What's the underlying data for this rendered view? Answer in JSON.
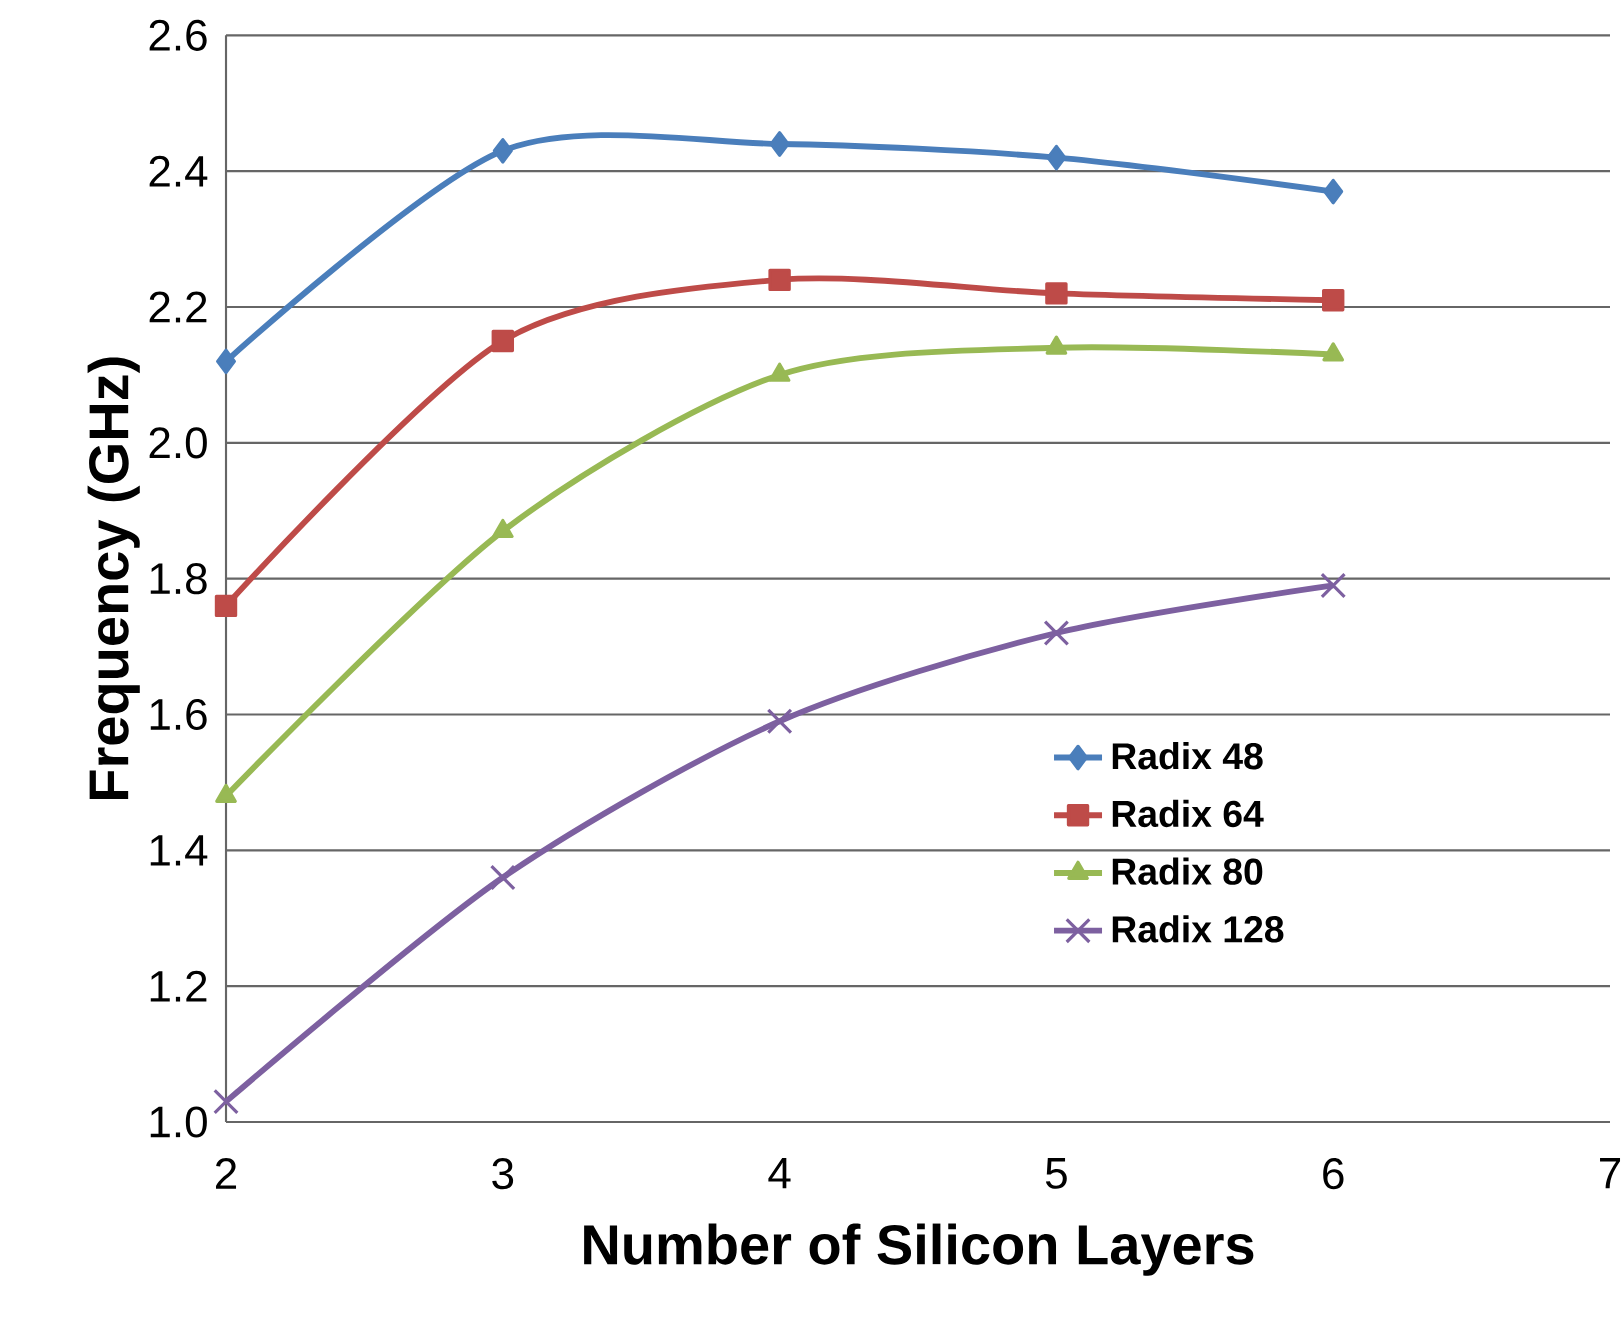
{
  "chart_data": {
    "type": "line",
    "xlabel": "Number of Silicon Layers",
    "ylabel": "Frequency (GHz)",
    "x": [
      2,
      3,
      4,
      5,
      6
    ],
    "series": [
      {
        "name": "Radix 48",
        "color": "#4a7ebb",
        "marker": "diamond",
        "values": [
          2.12,
          2.43,
          2.44,
          2.42,
          2.37
        ]
      },
      {
        "name": "Radix 64",
        "color": "#be4b48",
        "marker": "square",
        "values": [
          1.76,
          2.15,
          2.24,
          2.22,
          2.21
        ]
      },
      {
        "name": "Radix 80",
        "color": "#98b954",
        "marker": "triangle",
        "values": [
          1.48,
          1.87,
          2.1,
          2.14,
          2.13
        ]
      },
      {
        "name": "Radix 128",
        "color": "#7d60a0",
        "marker": "cross",
        "values": [
          1.03,
          1.36,
          1.59,
          1.72,
          1.79
        ]
      }
    ],
    "xlim": [
      2,
      7
    ],
    "xticks": [
      2,
      3,
      4,
      5,
      6,
      7
    ],
    "ylim": [
      1.0,
      2.6
    ],
    "yticks": [
      {
        "value": 1.0,
        "label": "1.0"
      },
      {
        "value": 1.2,
        "label": "1.2"
      },
      {
        "value": 1.4,
        "label": "1.4"
      },
      {
        "value": 1.6,
        "label": "1.6"
      },
      {
        "value": 1.8,
        "label": "1.8"
      },
      {
        "value": 2.0,
        "label": "2.0"
      },
      {
        "value": 2.2,
        "label": "2.2"
      },
      {
        "value": 2.4,
        "label": "2.4"
      },
      {
        "value": 2.6,
        "label": "2.6"
      }
    ],
    "grid": "y",
    "legend": "right",
    "line_style": "solid"
  }
}
